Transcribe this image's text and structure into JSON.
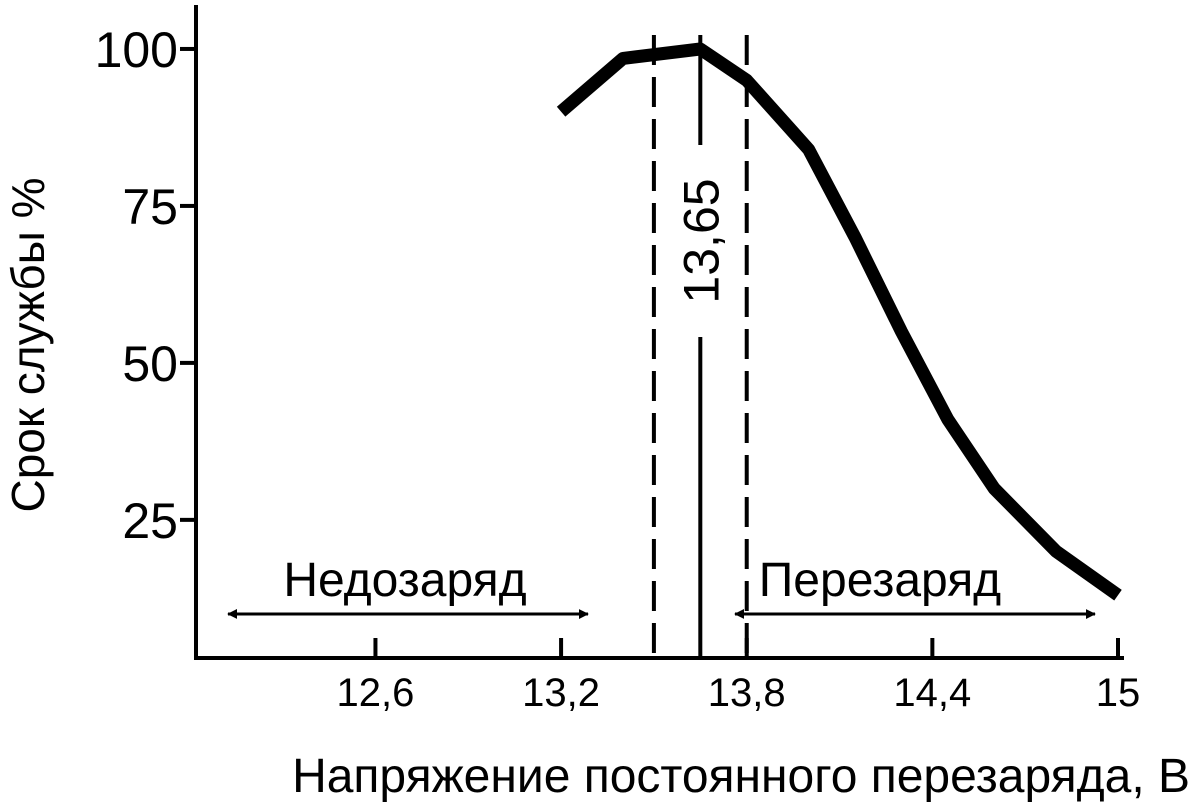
{
  "chart_data": {
    "type": "line",
    "x": [
      13.2,
      13.4,
      13.65,
      13.8,
      14.0,
      14.15,
      14.3,
      14.45,
      14.6,
      14.8,
      15.0
    ],
    "series": [
      {
        "color": "#000000",
        "values": [
          90,
          98.5,
          100,
          95,
          84,
          70,
          55,
          41,
          30,
          20,
          13
        ]
      }
    ],
    "xlim": [
      12.02,
      15
    ],
    "ylim": [
      3,
      107
    ],
    "xticks": [
      {
        "value": 12.6,
        "label": "12,6"
      },
      {
        "value": 13.2,
        "label": "13,2"
      },
      {
        "value": 13.8,
        "label": "13,8"
      },
      {
        "value": 14.4,
        "label": "14,4"
      },
      15
    ],
    "yticks": [
      25,
      50,
      75,
      100
    ],
    "xlabel": "Напряжение постоянного перезаряда, В",
    "ylabel": "Срок службы %",
    "reference_lines": [
      {
        "x": 13.5,
        "style": "dashed"
      },
      {
        "x": 13.65,
        "style": "solid",
        "label": "13,65"
      },
      {
        "x": 13.8,
        "style": "dashed"
      }
    ],
    "annotations": [
      {
        "text": "Недозаряд"
      },
      {
        "text": "Перезаряд"
      }
    ]
  }
}
